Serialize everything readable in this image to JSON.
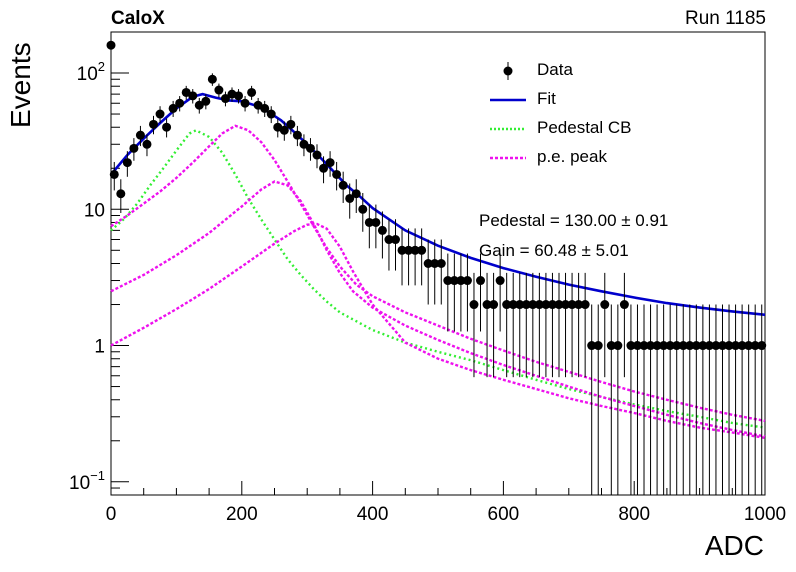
{
  "header": {
    "experiment": "CaloX",
    "run": "Run 1185"
  },
  "annotations": {
    "pedestal": "Pedestal = 130.00 ± 0.91",
    "gain": "Gain = 60.48 ± 5.01"
  },
  "colors": {
    "data": "#000000",
    "fit": "#0000cc",
    "pedestal_cb": "#33ee33",
    "pe_peak": "#ee11ee"
  },
  "chart_data": {
    "type": "scatter",
    "xlabel": "ADC",
    "ylabel": "Events",
    "xlim": [
      0,
      1000
    ],
    "ylim": [
      0.08,
      200
    ],
    "y_scale": "log",
    "grid": false,
    "legend_position": "top-right",
    "x_ticks": [
      0,
      200,
      400,
      600,
      800,
      1000
    ],
    "y_ticks": [
      {
        "value": 0.1,
        "label": "10",
        "exp": "−1"
      },
      {
        "value": 1,
        "label": "1",
        "exp": ""
      },
      {
        "value": 10,
        "label": "10",
        "exp": ""
      },
      {
        "value": 100,
        "label": "10",
        "exp": "2"
      }
    ],
    "legend": [
      {
        "key": "data",
        "label": "Data"
      },
      {
        "key": "fit",
        "label": "Fit"
      },
      {
        "key": "pedestal_cb",
        "label": "Pedestal CB"
      },
      {
        "key": "pe_peak",
        "label": "p.e. peak"
      }
    ],
    "series": [
      {
        "name": "Data",
        "style": "points",
        "x": [
          0,
          5,
          15,
          25,
          35,
          45,
          55,
          65,
          75,
          85,
          95,
          105,
          115,
          125,
          135,
          145,
          155,
          165,
          175,
          185,
          195,
          205,
          215,
          225,
          235,
          245,
          255,
          265,
          275,
          285,
          295,
          305,
          315,
          325,
          335,
          345,
          355,
          365,
          375,
          385,
          395,
          405,
          415,
          425,
          435,
          445,
          455,
          465,
          475,
          485,
          495,
          505,
          515,
          525,
          535,
          545,
          555,
          565,
          575,
          585,
          595,
          605,
          615,
          625,
          635,
          645,
          655,
          665,
          675,
          685,
          695,
          705,
          715,
          725,
          735,
          745,
          755,
          765,
          775,
          785,
          795,
          805,
          815,
          825,
          835,
          845,
          855,
          865,
          875,
          885,
          895,
          905,
          915,
          925,
          935,
          945,
          955,
          965,
          975,
          985,
          995
        ],
        "y": [
          160,
          18,
          13,
          22,
          28,
          35,
          30,
          42,
          50,
          40,
          55,
          60,
          72,
          68,
          58,
          62,
          90,
          75,
          65,
          70,
          68,
          60,
          72,
          58,
          55,
          50,
          40,
          38,
          42,
          35,
          30,
          28,
          25,
          20,
          22,
          18,
          15,
          12,
          13,
          10,
          8,
          8,
          7,
          6,
          6,
          5,
          5,
          5,
          5,
          4,
          4,
          4,
          3,
          3,
          3,
          3,
          2,
          3,
          2,
          2,
          3,
          2,
          2,
          2,
          2,
          2,
          2,
          2,
          2,
          2,
          2,
          2,
          2,
          2,
          1,
          1,
          2,
          1,
          1,
          2,
          1,
          1,
          1,
          1,
          1,
          1,
          1,
          1,
          1,
          1,
          1,
          1,
          1,
          1,
          1,
          1,
          1,
          1,
          1,
          1,
          1
        ]
      },
      {
        "name": "Fit",
        "style": "line",
        "x": [
          0,
          25,
          50,
          75,
          100,
          125,
          140,
          160,
          180,
          200,
          220,
          240,
          260,
          280,
          300,
          320,
          340,
          360,
          380,
          400,
          450,
          500,
          550,
          600,
          650,
          700,
          750,
          800,
          850,
          900,
          950,
          1000
        ],
        "y": [
          18,
          25,
          33,
          43,
          55,
          67,
          70,
          66,
          63,
          62,
          58,
          52,
          45,
          37,
          30,
          24,
          19,
          15,
          12.5,
          10.2,
          7.0,
          5.4,
          4.4,
          3.7,
          3.2,
          2.8,
          2.5,
          2.25,
          2.05,
          1.9,
          1.78,
          1.68
        ]
      },
      {
        "name": "Pedestal CB",
        "style": "dotted",
        "x": [
          0,
          20,
          40,
          60,
          80,
          100,
          120,
          130,
          150,
          170,
          190,
          210,
          230,
          250,
          270,
          290,
          310,
          330,
          350,
          400,
          450,
          500,
          550,
          600,
          650,
          700,
          750,
          800,
          850,
          900,
          950,
          1000
        ],
        "y": [
          7,
          8.5,
          11,
          15,
          20,
          27,
          36,
          38,
          34,
          26,
          18,
          12,
          8.4,
          6.0,
          4.3,
          3.3,
          2.6,
          2.1,
          1.75,
          1.3,
          1.05,
          0.9,
          0.78,
          0.66,
          0.56,
          0.48,
          0.42,
          0.37,
          0.33,
          0.3,
          0.27,
          0.25
        ]
      },
      {
        "name": "p.e. peak 1",
        "style": "dotted",
        "x": [
          0,
          25,
          50,
          75,
          100,
          125,
          150,
          170,
          190,
          210,
          230,
          250,
          270,
          290,
          310,
          330,
          350,
          375,
          400,
          450,
          500,
          550,
          600,
          650,
          700,
          750,
          800,
          850,
          900,
          950,
          1000
        ],
        "y": [
          7.5,
          9,
          11,
          13.5,
          17,
          22,
          29,
          36,
          41,
          38,
          31,
          23,
          16,
          11,
          7.5,
          5.2,
          3.8,
          2.8,
          2.3,
          1.75,
          1.4,
          1.12,
          0.92,
          0.76,
          0.64,
          0.54,
          0.46,
          0.4,
          0.35,
          0.31,
          0.28
        ]
      },
      {
        "name": "p.e. peak 2",
        "style": "dotted",
        "x": [
          0,
          50,
          100,
          150,
          200,
          230,
          250,
          270,
          290,
          310,
          330,
          350,
          370,
          400,
          450,
          500,
          550,
          600,
          650,
          700,
          750,
          800,
          850,
          900,
          950,
          1000
        ],
        "y": [
          2.5,
          3.3,
          4.6,
          6.7,
          10.5,
          14,
          16,
          15,
          11.5,
          7.8,
          5.0,
          3.4,
          2.5,
          1.9,
          1.4,
          1.1,
          0.88,
          0.72,
          0.6,
          0.5,
          0.42,
          0.36,
          0.31,
          0.27,
          0.24,
          0.215
        ]
      },
      {
        "name": "p.e. peak 3",
        "style": "dotted",
        "x": [
          0,
          50,
          100,
          150,
          200,
          250,
          280,
          300,
          315,
          330,
          350,
          370,
          400,
          450,
          500,
          550,
          600,
          650,
          700,
          750,
          800,
          850,
          900,
          950,
          1000
        ],
        "y": [
          1.0,
          1.35,
          1.85,
          2.6,
          3.8,
          5.6,
          6.9,
          7.7,
          7.8,
          7.2,
          5.3,
          3.5,
          2.0,
          1.05,
          0.8,
          0.66,
          0.56,
          0.48,
          0.41,
          0.36,
          0.32,
          0.28,
          0.25,
          0.23,
          0.21
        ]
      }
    ]
  }
}
